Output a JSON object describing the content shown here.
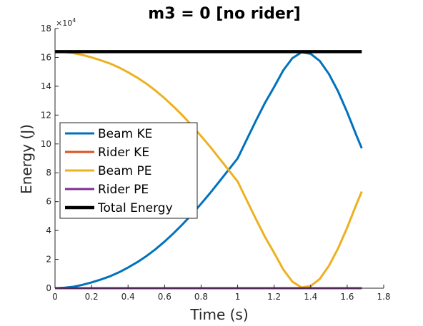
{
  "chart_data": {
    "type": "line",
    "title": "m3 = 0 [no rider]",
    "xlabel": "Time (s)",
    "ylabel": "Energy (J)",
    "y_exponent_label": "×10",
    "y_exponent_power": "4",
    "xlim": [
      0,
      1.8
    ],
    "ylim": [
      0,
      180000
    ],
    "x_ticks": [
      0,
      0.2,
      0.4,
      0.6,
      0.8,
      1,
      1.2,
      1.4,
      1.6,
      1.8
    ],
    "x_tick_labels": [
      "0",
      "0.2",
      "0.4",
      "0.6",
      "0.8",
      "1",
      "1.2",
      "1.4",
      "1.6",
      "1.8"
    ],
    "y_ticks": [
      0,
      20000,
      40000,
      60000,
      80000,
      100000,
      120000,
      140000,
      160000,
      180000
    ],
    "y_tick_labels": [
      "0",
      "2",
      "4",
      "6",
      "8",
      "10",
      "12",
      "14",
      "16",
      "18"
    ],
    "grid": false,
    "legend_position": "center-left",
    "x": [
      0,
      0.05,
      0.1,
      0.15,
      0.2,
      0.25,
      0.3,
      0.35,
      0.4,
      0.45,
      0.5,
      0.55,
      0.6,
      0.65,
      0.7,
      0.75,
      0.8,
      0.85,
      0.9,
      0.95,
      1.0,
      1.05,
      1.1,
      1.15,
      1.2,
      1.25,
      1.3,
      1.35,
      1.4,
      1.45,
      1.5,
      1.55,
      1.6,
      1.65,
      1.68
    ],
    "series": [
      {
        "name": "Beam KE",
        "color": "#0072BD",
        "values": [
          0,
          300,
          1000,
          2300,
          4000,
          6000,
          8200,
          11000,
          14300,
          18000,
          22200,
          27000,
          32300,
          38200,
          44500,
          51300,
          58500,
          66000,
          74000,
          82000,
          90000,
          103000,
          116000,
          128500,
          139500,
          151000,
          159500,
          163500,
          162500,
          157500,
          148500,
          136500,
          122000,
          106000,
          97000
        ]
      },
      {
        "name": "Rider KE",
        "color": "#D95319",
        "values": [
          0,
          0,
          0,
          0,
          0,
          0,
          0,
          0,
          0,
          0,
          0,
          0,
          0,
          0,
          0,
          0,
          0,
          0,
          0,
          0,
          0,
          0,
          0,
          0,
          0,
          0,
          0,
          0,
          0,
          0,
          0,
          0,
          0,
          0,
          0
        ]
      },
      {
        "name": "Beam PE",
        "color": "#EDB120",
        "values": [
          164000,
          163700,
          163000,
          161700,
          160000,
          158000,
          155800,
          153000,
          149700,
          146000,
          141800,
          137000,
          131700,
          125800,
          119500,
          112700,
          105500,
          98000,
          90000,
          82000,
          74000,
          61000,
          48000,
          35500,
          24500,
          13000,
          4500,
          500,
          1500,
          6500,
          15500,
          27500,
          42000,
          58000,
          67000
        ]
      },
      {
        "name": "Rider PE",
        "color": "#7E2F8E",
        "values": [
          0,
          0,
          0,
          0,
          0,
          0,
          0,
          0,
          0,
          0,
          0,
          0,
          0,
          0,
          0,
          0,
          0,
          0,
          0,
          0,
          0,
          0,
          0,
          0,
          0,
          0,
          0,
          0,
          0,
          0,
          0,
          0,
          0,
          0,
          0
        ]
      },
      {
        "name": "Total Energy",
        "color": "#000000",
        "values": [
          164000,
          164000,
          164000,
          164000,
          164000,
          164000,
          164000,
          164000,
          164000,
          164000,
          164000,
          164000,
          164000,
          164000,
          164000,
          164000,
          164000,
          164000,
          164000,
          164000,
          164000,
          164000,
          164000,
          164000,
          164000,
          164000,
          164000,
          164000,
          164000,
          164000,
          164000,
          164000,
          164000,
          164000,
          164000
        ]
      }
    ]
  }
}
